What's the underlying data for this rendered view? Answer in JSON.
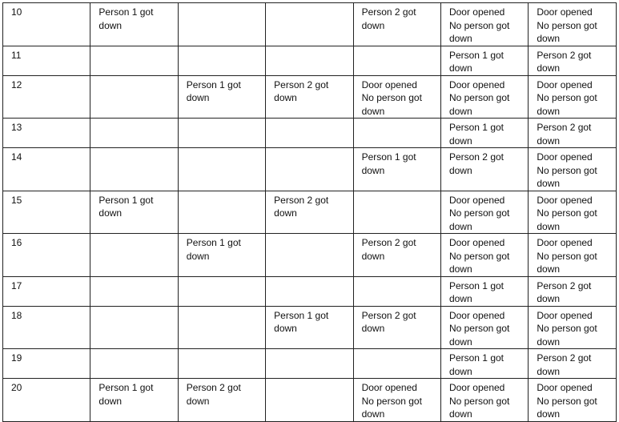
{
  "table": {
    "rows": [
      {
        "id": "10",
        "cells": [
          "Person 1 got down",
          "",
          "",
          "Person 2 got down",
          "Door opened\nNo person got down",
          "Door opened\nNo person got down"
        ]
      },
      {
        "id": "11",
        "cells": [
          "",
          "",
          "",
          "",
          "Person 1 got down",
          "Person 2 got down"
        ]
      },
      {
        "id": "12",
        "cells": [
          "",
          "Person 1 got down",
          "Person 2 got down",
          "Door opened\nNo person got down",
          "Door opened\nNo person got down",
          "Door opened\nNo person got down"
        ]
      },
      {
        "id": "13",
        "cells": [
          "",
          "",
          "",
          "",
          "Person 1 got down",
          "Person 2 got down"
        ]
      },
      {
        "id": "14",
        "cells": [
          "",
          "",
          "",
          "Person 1 got down",
          "Person 2 got down",
          "Door opened\nNo person got down"
        ]
      },
      {
        "id": "15",
        "cells": [
          "Person 1 got down",
          "",
          "Person 2 got down",
          "",
          "Door opened\nNo person got down",
          "Door opened\nNo person got down"
        ]
      },
      {
        "id": "16",
        "cells": [
          "",
          "Person 1 got down",
          "",
          "Person 2 got down",
          "Door opened\nNo person got down",
          "Door opened\nNo person got down"
        ]
      },
      {
        "id": "17",
        "cells": [
          "",
          "",
          "",
          "",
          "Person 1 got down",
          "Person 2 got down"
        ]
      },
      {
        "id": "18",
        "cells": [
          "",
          "",
          "Person 1 got down",
          "Person 2 got down",
          "Door opened\nNo person got down",
          "Door opened\nNo person got down"
        ]
      },
      {
        "id": "19",
        "cells": [
          "",
          "",
          "",
          "",
          "Person 1 got down",
          "Person 2 got down"
        ]
      },
      {
        "id": "20",
        "cells": [
          "Person 1 got down",
          "Person 2 got down",
          "",
          "Door opened\nNo person got down",
          "Door opened\nNo person got down",
          "Door opened\nNo person got down"
        ]
      }
    ]
  }
}
